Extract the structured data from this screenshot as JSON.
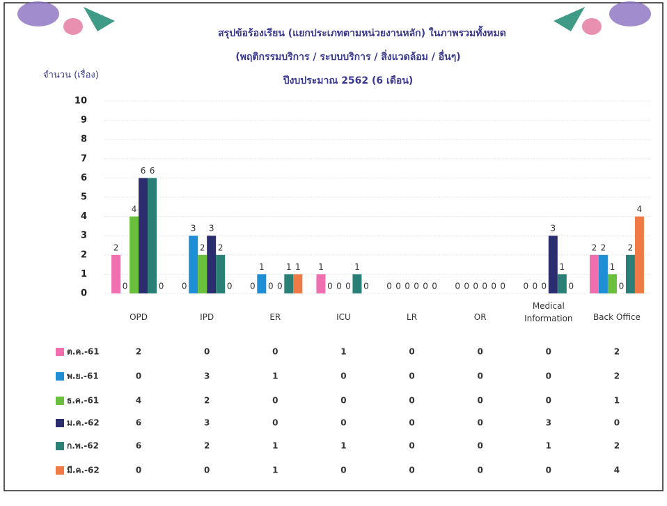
{
  "chart_data": {
    "type": "bar",
    "title": [
      "สรุปข้อร้องเรียน (แยกประเภทตามหน่วยงานหลัก) ในภาพรวมทั้งหมด",
      "(พฤติกรรมบริการ / ระบบบริการ / สิ่งแวดล้อม / อื่นๆ)",
      "ปีงบประมาณ 2562 (6 เดือน)"
    ],
    "y_label": "จำนวน (เรื่อง)",
    "categories": [
      "OPD",
      "IPD",
      "ER",
      "ICU",
      "LR",
      "OR",
      "Medical Information",
      "Back Office"
    ],
    "series": [
      {
        "name": "ต.ค.-61",
        "color": "#f06fae",
        "values": [
          2,
          0,
          0,
          1,
          0,
          0,
          0,
          2
        ]
      },
      {
        "name": "พ.ย.-61",
        "color": "#1e8fd5",
        "values": [
          0,
          3,
          1,
          0,
          0,
          0,
          0,
          2
        ]
      },
      {
        "name": "ธ.ค.-61",
        "color": "#6abf3c",
        "values": [
          4,
          2,
          0,
          0,
          0,
          0,
          0,
          1
        ]
      },
      {
        "name": "ม.ค.-62",
        "color": "#2b2d6e",
        "values": [
          6,
          3,
          0,
          0,
          0,
          0,
          3,
          0
        ]
      },
      {
        "name": "ก.พ.-62",
        "color": "#2a8076",
        "values": [
          6,
          2,
          1,
          1,
          0,
          0,
          1,
          2
        ]
      },
      {
        "name": "มี.ค.-62",
        "color": "#f07a45",
        "values": [
          0,
          0,
          1,
          0,
          0,
          0,
          0,
          4
        ]
      }
    ],
    "ylim": [
      0,
      10
    ],
    "yticks": [
      0,
      1,
      2,
      3,
      4,
      5,
      6,
      7,
      8,
      9,
      10
    ],
    "grid": true
  }
}
